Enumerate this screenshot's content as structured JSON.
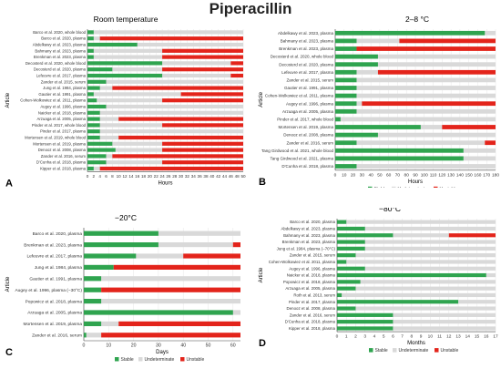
{
  "figure_title": "Piperacillin",
  "legend_labels": {
    "stable": "Stable",
    "undeterminate": "Undeterminate",
    "unstable": "Unstable"
  },
  "colors": {
    "stable": "#2fa44f",
    "undeterminate": "#d9d9d9",
    "unstable": "#e3241b",
    "grid": "#e0e0e0",
    "axis": "#444444"
  },
  "chart_data": [
    {
      "type": "bar",
      "panel_letter": "A",
      "title": "Room temperature",
      "xlabel": "Hours",
      "ylabel": "Article",
      "xlim": [
        0,
        50
      ],
      "xticks": [
        0,
        2,
        4,
        6,
        8,
        10,
        12,
        14,
        16,
        18,
        20,
        22,
        24,
        26,
        28,
        30,
        32,
        34,
        36,
        38,
        40,
        42,
        44,
        46,
        48,
        50
      ],
      "categories": [
        "Barco et al. 2020, whole blood",
        "Barco et al. 2020, plasma",
        "Abdelkawy et al. 2023, plasma",
        "Bahmany et al. 2023, plasma",
        "Brenkman et al. 2023, plasma",
        "Decosterd et al. 2020, whole blood",
        "Decosterd et al. 2020, plasma",
        "Lefeuvre et al. 2017, plasma",
        "Zander et al. 2015, serum",
        "Jung et al. 1984, plasma",
        "Gautier et al. 1991, plasma",
        "Cohen-Wolkowiez et al. 2011, plasma",
        "Augey et al. 1996, plasma",
        "Naicker et al. 2018, plasma",
        "Arzuaga et al. 2005, plasma",
        "Pinder et al. 2017, whole blood",
        "Pinder et al. 2017, plasma",
        "Mortensen et al. 2019, whole blood",
        "Mortensen et al. 2019, plasma",
        "Denooz et al. 2008, plasma",
        "Zander et al. 2016, serum",
        "D'Cunha et al. 2018, plasma",
        "Kipper et al. 2018, plasma"
      ],
      "stable_end": [
        2,
        2,
        16,
        2,
        2,
        24,
        8,
        24,
        6,
        4,
        2,
        3,
        6,
        4,
        4,
        4,
        4,
        4,
        8,
        9,
        6,
        6,
        2
      ],
      "unstable_start": [
        null,
        4,
        null,
        24,
        24,
        46,
        24,
        46,
        null,
        8,
        30,
        24,
        null,
        null,
        10,
        24,
        null,
        10,
        24,
        24,
        8,
        24,
        4
      ]
    },
    {
      "type": "bar",
      "panel_letter": "B",
      "title": "2–8 °C",
      "xlabel": "Hours",
      "ylabel": "Article",
      "xlim": [
        0,
        180
      ],
      "xticks": [
        0,
        10,
        20,
        30,
        40,
        50,
        60,
        70,
        80,
        90,
        100,
        110,
        120,
        130,
        140,
        150,
        160,
        170,
        180
      ],
      "categories": [
        "Abdelkawy et al. 2023, plasma",
        "Bahmany et al. 2023, plasma",
        "Brenkman et al. 2023, plasma",
        "Decosterd et al. 2020, whole blood",
        "Decosterd et al. 2020, plasma",
        "Lefeuvre et al. 2017, plasma",
        "Zander et al. 2015, serum",
        "Gautier et al. 1991, plasma",
        "Cohen-Wolkowiez et al. 2011, plasma",
        "Augey et al. 1996, plasma",
        "Arzuaga et al. 2005, plasma",
        "Pinder et al. 2017, whole blood",
        "Mortensen et al. 2019, plasma",
        "Denooz et al. 2008, plasma",
        "Zander et al. 2016, serum",
        "Tang Girdwood et al. 2021, whole blood",
        "Tang Girdwood et al. 2021, plasma",
        "D'Cunha et al. 2018, plasma"
      ],
      "stable_end": [
        168,
        24,
        24,
        48,
        48,
        24,
        24,
        24,
        24,
        24,
        24,
        6,
        96,
        48,
        24,
        144,
        144,
        24
      ],
      "unstable_start": [
        null,
        72,
        24,
        null,
        null,
        48,
        null,
        null,
        null,
        30,
        null,
        null,
        120,
        null,
        168,
        null,
        null,
        null
      ]
    },
    {
      "type": "bar",
      "panel_letter": "C",
      "title": "−20°C",
      "xlabel": "Days",
      "ylabel": "Article",
      "xlim": [
        0,
        63
      ],
      "xticks": [
        0,
        10,
        20,
        30,
        40,
        50,
        60
      ],
      "categories": [
        "Barco et al. 2020, plasma",
        "Brenkman et al. 2023, plasma",
        "Lefeuvre et al. 2017, plasma",
        "Jung et al. 1984, plasma",
        "Gautier et al. 1991, plasma",
        "Augey et al. 1996, plasma (−30°C)",
        "Popowicz et al. 2018, plasma",
        "Arzuaga et al. 2005, plasma",
        "Mortensen et al. 2019, plasma",
        "Zander et al. 2016, serum"
      ],
      "stable_end": [
        30,
        30,
        21,
        12,
        7,
        7,
        7,
        60,
        7,
        1
      ],
      "unstable_start": [
        null,
        60,
        40,
        12,
        null,
        7,
        null,
        null,
        14,
        7
      ]
    },
    {
      "type": "bar",
      "panel_letter": "D",
      "title": "−80°C",
      "xlabel": "Months",
      "ylabel": "Article",
      "xlim": [
        0,
        17
      ],
      "xticks": [
        0,
        1,
        2,
        3,
        4,
        5,
        6,
        7,
        8,
        9,
        10,
        11,
        12,
        13,
        14,
        15,
        16,
        17
      ],
      "categories": [
        "Barco et al. 2020, plasma",
        "Abdelkawy et al. 2023, plasma",
        "Bahmany et al. 2023, plasma",
        "Brenkman et al. 2023, plasma",
        "Jung et al. 1984, plasma (−70°C)",
        "Zander et al. 2015, serum",
        "Cohen-Wolkowiez et al. 2011, plasma",
        "Augey et al. 1996, plasma",
        "Naicker et al. 2018, plasma",
        "Popowicz et al. 2018, plasma",
        "Arzuaga et al. 2005, plasma",
        "Roth et al. 2013, serum",
        "Pinder et al. 2017, plasma",
        "Denooz et al. 2008, plasma",
        "Zander et al. 2016, serum",
        "D'Cunha et al. 2018, plasma",
        "Kipper et al. 2018, plasma"
      ],
      "stable_end": [
        1,
        3,
        6,
        3,
        3,
        2,
        1,
        3,
        16,
        2.5,
        2,
        0.5,
        13,
        2,
        6,
        6,
        6
      ],
      "unstable_start": [
        null,
        null,
        12,
        null,
        null,
        null,
        null,
        null,
        null,
        null,
        null,
        null,
        null,
        null,
        null,
        null,
        null
      ]
    }
  ]
}
